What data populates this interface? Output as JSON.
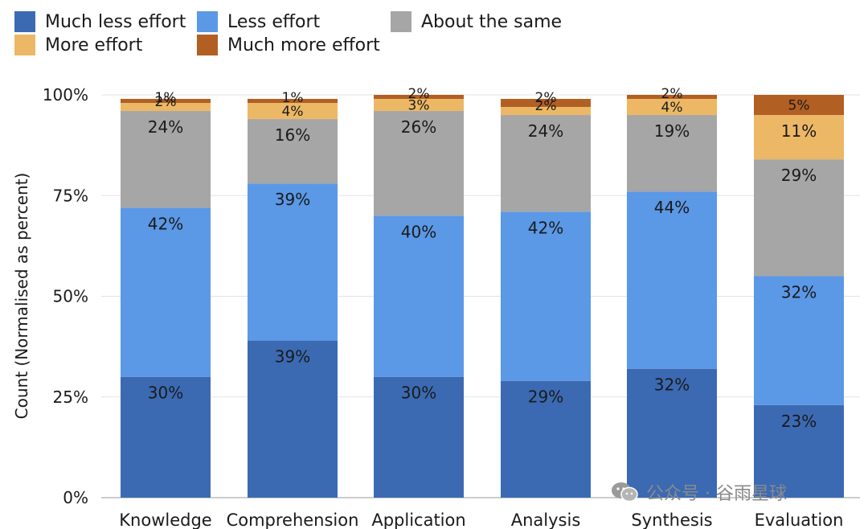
{
  "chart_data": {
    "type": "bar",
    "stacked": true,
    "ylabel": "Count (Normalised as percent)",
    "ylim": [
      0,
      100
    ],
    "yticks": [
      "0%",
      "25%",
      "50%",
      "75%",
      "100%"
    ],
    "grid": true,
    "legend_position": "top-left",
    "categories": [
      "Knowledge",
      "Comprehension",
      "Application",
      "Analysis",
      "Synthesis",
      "Evaluation"
    ],
    "series": [
      {
        "name": "Much less effort",
        "color": "#3b6ab3",
        "values": [
          30,
          39,
          30,
          29,
          32,
          23
        ],
        "labels": [
          "30%",
          "39%",
          "30%",
          "29%",
          "32%",
          "23%"
        ]
      },
      {
        "name": "Less effort",
        "color": "#5b98e6",
        "values": [
          42,
          39,
          40,
          42,
          44,
          32
        ],
        "labels": [
          "42%",
          "39%",
          "40%",
          "42%",
          "44%",
          "32%"
        ]
      },
      {
        "name": "About the same",
        "color": "#a6a6a6",
        "values": [
          24,
          16,
          26,
          24,
          19,
          29
        ],
        "labels": [
          "24%",
          "16%",
          "26%",
          "24%",
          "19%",
          "29%"
        ]
      },
      {
        "name": "More effort",
        "color": "#ecb865",
        "values": [
          2,
          4,
          3,
          2,
          4,
          11
        ],
        "labels": [
          "2%",
          "4%",
          "3%",
          "2%",
          "4%",
          "11%"
        ]
      },
      {
        "name": "Much more effort",
        "color": "#b25f24",
        "values": [
          1,
          1,
          2,
          2,
          2,
          5
        ],
        "labels": [
          "1%",
          "1%",
          "2%",
          "2%",
          "2%",
          "5%"
        ]
      }
    ]
  },
  "watermark": {
    "icon": "wechat-icon",
    "text": "公众号 · 谷雨星球"
  }
}
